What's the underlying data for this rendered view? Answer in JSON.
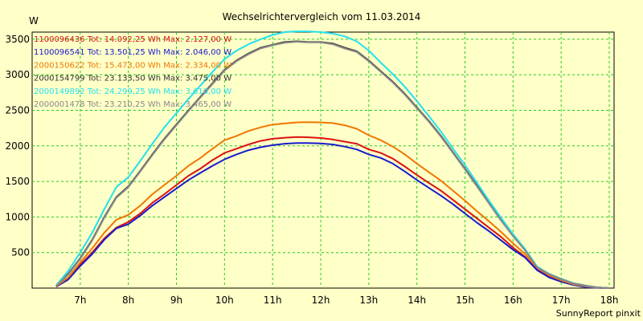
{
  "chart_data": {
    "type": "line",
    "title": "Wechselrichtervergleich vom 11.03.2014",
    "ylabel": "W",
    "ylim": [
      0,
      3600
    ],
    "yticks": [
      500,
      1000,
      1500,
      2000,
      2500,
      3000,
      3500
    ],
    "xlim": [
      6.0,
      18.1
    ],
    "xticks": [
      {
        "value": 7,
        "label": "7h"
      },
      {
        "value": 8,
        "label": "8h"
      },
      {
        "value": 9,
        "label": "9h"
      },
      {
        "value": 10,
        "label": "10h"
      },
      {
        "value": 11,
        "label": "11h"
      },
      {
        "value": 12,
        "label": "12h"
      },
      {
        "value": 13,
        "label": "13h"
      },
      {
        "value": 14,
        "label": "14h"
      },
      {
        "value": 15,
        "label": "15h"
      },
      {
        "value": 16,
        "label": "16h"
      },
      {
        "value": 17,
        "label": "17h"
      },
      {
        "value": 18,
        "label": "18h"
      }
    ],
    "grid": true,
    "legend_position": "top-left",
    "footer": "SunnyReport pinxit",
    "x": [
      6.5,
      6.75,
      7.0,
      7.25,
      7.5,
      7.75,
      8.0,
      8.25,
      8.5,
      8.75,
      9.0,
      9.25,
      9.5,
      9.75,
      10.0,
      10.25,
      10.5,
      10.75,
      11.0,
      11.25,
      11.5,
      11.75,
      12.0,
      12.25,
      12.5,
      12.75,
      13.0,
      13.25,
      13.5,
      13.75,
      14.0,
      14.25,
      14.5,
      14.75,
      15.0,
      15.25,
      15.5,
      15.75,
      16.0,
      16.25,
      16.5,
      16.75,
      17.0,
      17.25,
      17.5,
      17.75,
      18.0
    ],
    "series": [
      {
        "name": "1100096436",
        "legend": "1100096436 Tot: 14.092,25 Wh Max: 2.127,00 W",
        "color": "#dd1111",
        "values": [
          20,
          130,
          330,
          500,
          700,
          850,
          930,
          1050,
          1200,
          1320,
          1450,
          1580,
          1680,
          1800,
          1900,
          1960,
          2020,
          2070,
          2100,
          2115,
          2125,
          2120,
          2110,
          2090,
          2060,
          2030,
          1950,
          1900,
          1820,
          1710,
          1590,
          1480,
          1370,
          1240,
          1110,
          980,
          850,
          720,
          570,
          440,
          260,
          160,
          100,
          50,
          20,
          5,
          0
        ]
      },
      {
        "name": "1100096541",
        "legend": "1100096541 Tot: 13.501,25 Wh Max: 2.046,00 W",
        "color": "#1a1acc",
        "values": [
          20,
          120,
          310,
          480,
          680,
          840,
          900,
          1020,
          1160,
          1280,
          1400,
          1520,
          1620,
          1720,
          1810,
          1880,
          1940,
          1980,
          2010,
          2030,
          2040,
          2040,
          2035,
          2020,
          1990,
          1950,
          1880,
          1830,
          1750,
          1640,
          1520,
          1410,
          1300,
          1180,
          1050,
          920,
          800,
          670,
          540,
          430,
          250,
          150,
          90,
          45,
          15,
          5,
          0
        ]
      },
      {
        "name": "2000150622",
        "legend": "2000150622 Tot: 15.473,00 Wh Max: 2.334,00 W",
        "color": "#ee7700",
        "values": [
          25,
          150,
          360,
          560,
          780,
          960,
          1030,
          1160,
          1320,
          1450,
          1580,
          1720,
          1830,
          1960,
          2080,
          2140,
          2210,
          2260,
          2300,
          2315,
          2330,
          2334,
          2330,
          2320,
          2290,
          2240,
          2150,
          2080,
          1990,
          1880,
          1750,
          1630,
          1510,
          1370,
          1230,
          1080,
          940,
          790,
          630,
          480,
          290,
          180,
          110,
          55,
          25,
          8,
          0
        ]
      },
      {
        "name": "2000154799",
        "legend": "2000154799 Tot: 23.133,50 Wh Max: 3.475,00 W",
        "color": "#333333",
        "values": [
          30,
          200,
          420,
          680,
          1000,
          1280,
          1430,
          1650,
          1880,
          2100,
          2300,
          2500,
          2690,
          2880,
          3070,
          3200,
          3300,
          3380,
          3420,
          3460,
          3470,
          3460,
          3460,
          3440,
          3380,
          3330,
          3200,
          3050,
          2900,
          2730,
          2540,
          2350,
          2140,
          1910,
          1680,
          1440,
          1200,
          960,
          740,
          540,
          300,
          200,
          130,
          70,
          35,
          10,
          0
        ]
      },
      {
        "name": "2000149892",
        "legend": "2000149892 Tot: 24.299,25 Wh Max: 3.610,00 W",
        "color": "#22e0ee",
        "values": [
          40,
          240,
          500,
          780,
          1110,
          1420,
          1560,
          1790,
          2030,
          2260,
          2460,
          2660,
          2850,
          3040,
          3220,
          3340,
          3430,
          3500,
          3560,
          3600,
          3610,
          3610,
          3600,
          3580,
          3540,
          3470,
          3340,
          3170,
          3010,
          2830,
          2630,
          2420,
          2200,
          1960,
          1730,
          1480,
          1230,
          990,
          760,
          550,
          300,
          200,
          130,
          70,
          30,
          10,
          0
        ]
      },
      {
        "name": "2000001478",
        "legend": "2000001478 Tot: 23.210,25 Wh Max: 3.465,00 W",
        "color": "#888888",
        "values": [
          30,
          190,
          410,
          670,
          990,
          1270,
          1420,
          1640,
          1870,
          2090,
          2290,
          2490,
          2680,
          2870,
          3060,
          3190,
          3290,
          3370,
          3415,
          3450,
          3465,
          3455,
          3455,
          3430,
          3370,
          3320,
          3190,
          3040,
          2890,
          2720,
          2530,
          2340,
          2130,
          1900,
          1670,
          1430,
          1190,
          950,
          730,
          530,
          290,
          195,
          125,
          65,
          30,
          10,
          0
        ]
      }
    ]
  }
}
